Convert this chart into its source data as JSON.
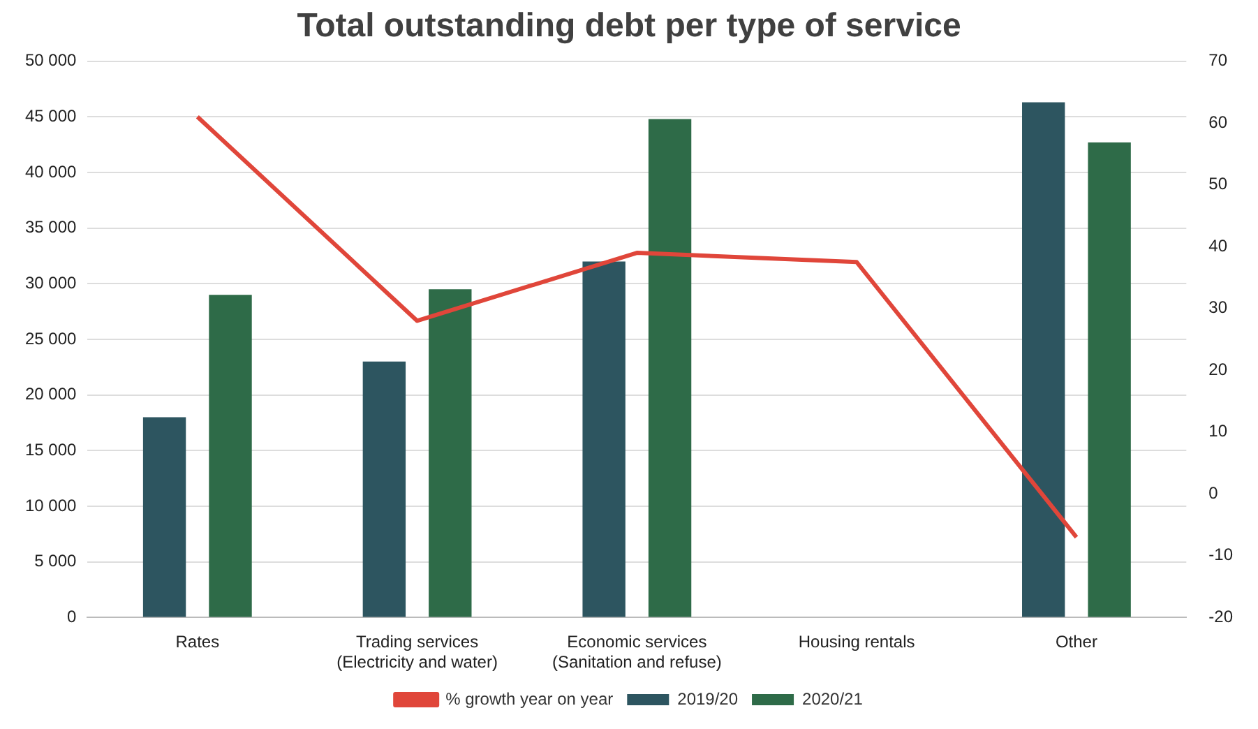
{
  "chart_data": {
    "type": "bar",
    "title": "Total outstanding debt per type of service",
    "categories": [
      "Rates",
      "Trading services (Electricity and water)",
      "Economic services (Sanitation and refuse)",
      "Housing rentals",
      "Other"
    ],
    "series": [
      {
        "name": "2019/20",
        "color": "#2d5560",
        "values": [
          18000,
          23000,
          32000,
          null,
          46300
        ]
      },
      {
        "name": "2020/21",
        "color": "#2e6b48",
        "values": [
          29000,
          29500,
          44800,
          null,
          42700
        ]
      },
      {
        "name": "% growth year on year",
        "type": "line",
        "axis": "y2",
        "color": "#e0463a",
        "values": [
          61,
          28,
          39,
          37.5,
          -7
        ]
      }
    ],
    "ylim": [
      0,
      50000
    ],
    "yticks": [
      {
        "value": 0,
        "label": "0"
      },
      {
        "value": 5000,
        "label": "5 000"
      },
      {
        "value": 10000,
        "label": "10 000"
      },
      {
        "value": 15000,
        "label": "15 000"
      },
      {
        "value": 20000,
        "label": "20 000"
      },
      {
        "value": 25000,
        "label": "25 000"
      },
      {
        "value": 30000,
        "label": "30 000"
      },
      {
        "value": 35000,
        "label": "35 000"
      },
      {
        "value": 40000,
        "label": "40 000"
      },
      {
        "value": 45000,
        "label": "45 000"
      },
      {
        "value": 50000,
        "label": "50 000"
      }
    ],
    "y2lim": [
      -20,
      70
    ],
    "y2ticks": [
      -20,
      -10,
      0,
      10,
      20,
      30,
      40,
      50,
      60,
      70
    ],
    "grid": "y",
    "legend": "bottom",
    "marker": "none"
  }
}
